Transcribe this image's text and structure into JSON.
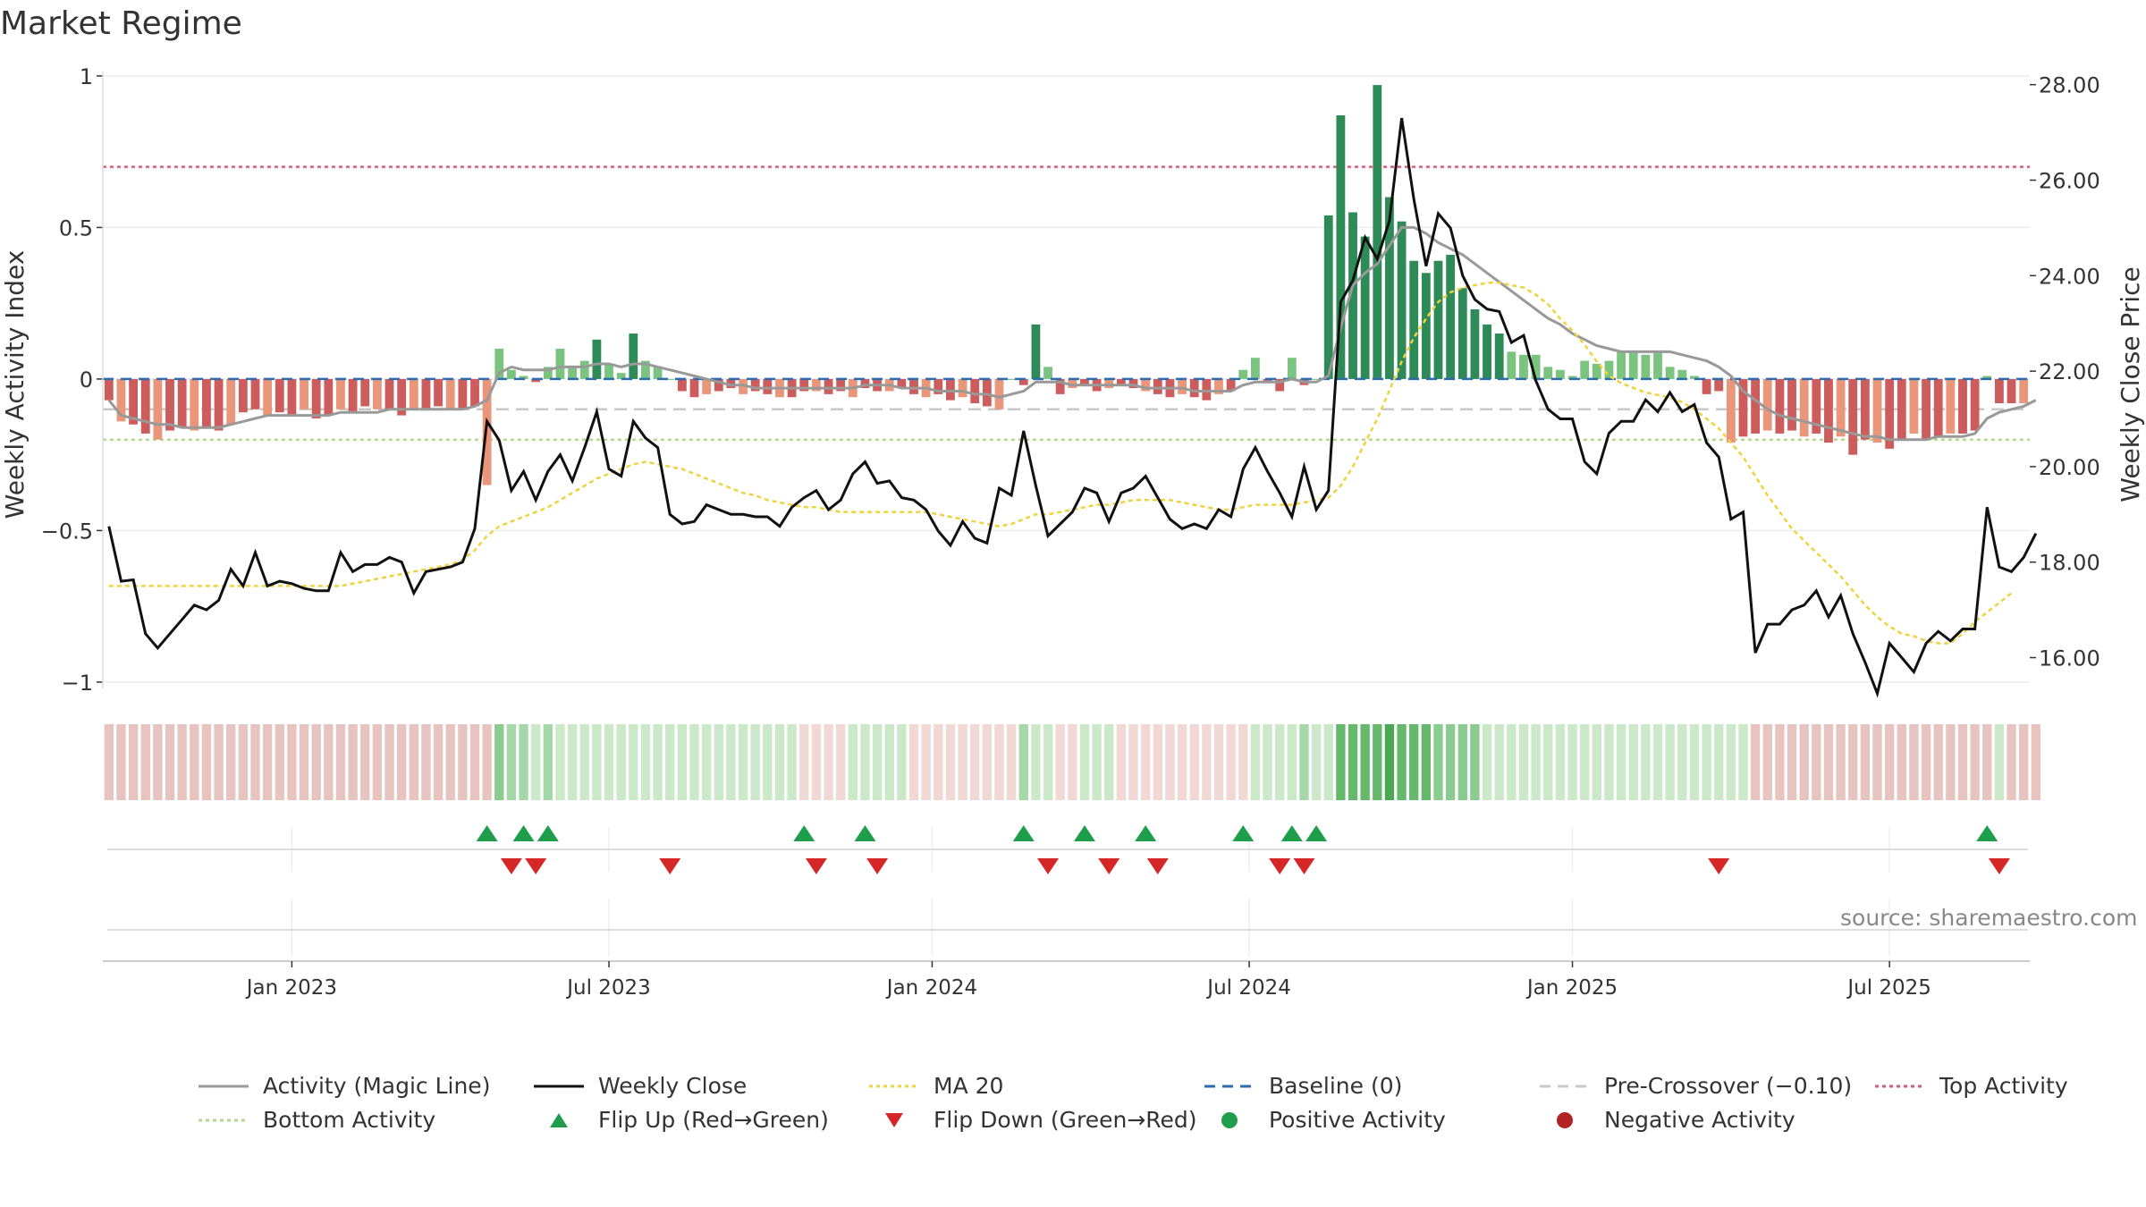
{
  "title": "Market Regime",
  "source": "source: sharemaestro.com",
  "colors": {
    "strong_green": "#2e8b57",
    "light_green": "#7bc47f",
    "strong_red": "#cd5c5c",
    "light_red": "#e9967a",
    "close": "#111111",
    "ma20": "#f0d23c",
    "magic": "#999999",
    "baseline": "#2b6cb0",
    "precross": "#c8c8c8",
    "top": "#e05a7a",
    "bottom": "#b5d98a",
    "flip_up": "#1e9e4a",
    "flip_down": "#d62728"
  },
  "chart_data": {
    "type": "bar",
    "left_axis": {
      "label": "Weekly Activity Index",
      "ticks": [
        1,
        0.5,
        0,
        -0.5,
        -1
      ],
      "tick_labels": [
        "1",
        "0.5",
        "0",
        "−0.5",
        "−1"
      ],
      "range": [
        -1.08,
        1.05
      ]
    },
    "right_axis": {
      "label": "Weekly Close Price",
      "ticks": [
        28,
        26,
        24,
        22,
        20,
        18,
        16
      ],
      "tick_labels": [
        "28.00",
        "26.00",
        "24.00",
        "22.00",
        "20.00",
        "18.00",
        "16.00"
      ],
      "range": [
        14.98,
        28.5
      ]
    },
    "x_axis": {
      "tick_labels": [
        "Jan 2023",
        "Jul 2023",
        "Jan 2024",
        "Jul 2024",
        "Jan 2025",
        "Jul 2025"
      ],
      "tick_weeks": [
        15,
        41,
        67.5,
        93.5,
        120,
        146
      ]
    },
    "levels": {
      "top": 0.7,
      "bottom": -0.2,
      "pre_crossover": -0.1,
      "baseline": 0
    },
    "weeks": 158,
    "activity": [
      -0.07,
      -0.14,
      -0.15,
      -0.18,
      -0.2,
      -0.17,
      -0.16,
      -0.17,
      -0.16,
      -0.17,
      -0.15,
      -0.11,
      -0.1,
      -0.12,
      -0.11,
      -0.12,
      -0.1,
      -0.13,
      -0.12,
      -0.1,
      -0.11,
      -0.09,
      -0.1,
      -0.1,
      -0.12,
      -0.1,
      -0.1,
      -0.09,
      -0.1,
      -0.1,
      -0.09,
      -0.35,
      0.1,
      0.03,
      0.01,
      -0.01,
      0.04,
      0.1,
      0.04,
      0.06,
      0.13,
      0.05,
      0.02,
      0.15,
      0.06,
      0.04,
      0.0,
      -0.04,
      -0.06,
      -0.05,
      -0.04,
      -0.03,
      -0.05,
      -0.04,
      -0.05,
      -0.06,
      -0.06,
      -0.04,
      -0.04,
      -0.05,
      -0.04,
      -0.06,
      -0.03,
      -0.04,
      -0.04,
      -0.03,
      -0.05,
      -0.06,
      -0.05,
      -0.07,
      -0.06,
      -0.08,
      -0.09,
      -0.1,
      0.0,
      -0.02,
      0.18,
      0.04,
      -0.05,
      -0.03,
      -0.02,
      -0.04,
      -0.03,
      -0.02,
      -0.03,
      -0.04,
      -0.05,
      -0.06,
      -0.05,
      -0.06,
      -0.07,
      -0.05,
      -0.04,
      0.03,
      0.07,
      -0.01,
      -0.04,
      0.07,
      -0.02,
      0.0,
      0.54,
      0.87,
      0.55,
      0.47,
      0.97,
      0.6,
      0.52,
      0.39,
      0.35,
      0.39,
      0.41,
      0.3,
      0.23,
      0.18,
      0.15,
      0.09,
      0.08,
      0.08,
      0.04,
      0.03,
      0.01,
      0.06,
      0.05,
      0.06,
      0.09,
      0.09,
      0.08,
      0.09,
      0.04,
      0.03,
      0.01,
      -0.05,
      -0.04,
      -0.21,
      -0.19,
      -0.18,
      -0.17,
      -0.18,
      -0.17,
      -0.19,
      -0.18,
      -0.21,
      -0.19,
      -0.25,
      -0.2,
      -0.21,
      -0.23,
      -0.2,
      -0.18,
      -0.2,
      -0.19,
      -0.18,
      -0.18,
      -0.17,
      0.01,
      -0.08,
      -0.08,
      -0.08
    ],
    "weekly_close": [
      18.75,
      17.6,
      17.63,
      16.5,
      16.2,
      16.5,
      16.8,
      17.1,
      17.0,
      17.2,
      17.85,
      17.5,
      18.2,
      17.5,
      17.6,
      17.55,
      17.45,
      17.4,
      17.4,
      18.2,
      17.8,
      17.95,
      17.95,
      18.1,
      18.0,
      17.35,
      17.8,
      17.85,
      17.9,
      18.0,
      18.7,
      20.95,
      20.55,
      19.5,
      19.9,
      19.3,
      19.9,
      20.25,
      19.7,
      20.4,
      21.15,
      19.95,
      19.8,
      20.95,
      20.6,
      20.4,
      19.0,
      18.8,
      18.85,
      19.2,
      19.1,
      19.0,
      19.0,
      18.95,
      18.95,
      18.75,
      19.15,
      19.35,
      19.5,
      19.1,
      19.3,
      19.85,
      20.1,
      19.65,
      19.7,
      19.35,
      19.3,
      19.1,
      18.65,
      18.35,
      18.85,
      18.5,
      18.4,
      19.55,
      19.4,
      20.75,
      19.6,
      18.55,
      18.8,
      19.05,
      19.55,
      19.45,
      18.85,
      19.45,
      19.55,
      19.8,
      19.35,
      18.9,
      18.7,
      18.8,
      18.7,
      19.1,
      18.95,
      19.95,
      20.4,
      19.9,
      19.45,
      18.95,
      20.0,
      19.1,
      19.5,
      23.45,
      23.9,
      24.8,
      24.35,
      25.15,
      27.3,
      25.6,
      24.2,
      25.3,
      25.0,
      24.0,
      23.5,
      23.3,
      23.25,
      22.6,
      22.75,
      21.8,
      21.2,
      21.0,
      21.0,
      20.1,
      19.85,
      20.7,
      20.95,
      20.95,
      21.4,
      21.15,
      21.55,
      21.15,
      21.3,
      20.5,
      20.2,
      18.9,
      19.05,
      16.1,
      16.7,
      16.7,
      17.0,
      17.1,
      17.4,
      16.85,
      17.3,
      16.5,
      15.9,
      15.25,
      16.3,
      16.0,
      15.7,
      16.3,
      16.55,
      16.35,
      16.6,
      16.6,
      19.15,
      17.9,
      17.8,
      18.1,
      18.6
    ],
    "ma20": [
      17.5,
      17.5,
      17.5,
      17.5,
      17.5,
      17.5,
      17.5,
      17.5,
      17.5,
      17.5,
      17.5,
      17.5,
      17.5,
      17.5,
      17.5,
      17.5,
      17.5,
      17.5,
      17.5,
      17.5,
      17.55,
      17.6,
      17.65,
      17.7,
      17.75,
      17.8,
      17.85,
      17.9,
      17.95,
      18.05,
      18.25,
      18.55,
      18.75,
      18.85,
      18.95,
      19.05,
      19.15,
      19.3,
      19.45,
      19.6,
      19.75,
      19.85,
      19.95,
      20.05,
      20.1,
      20.05,
      20.0,
      19.95,
      19.85,
      19.75,
      19.65,
      19.55,
      19.45,
      19.4,
      19.3,
      19.25,
      19.2,
      19.15,
      19.15,
      19.1,
      19.05,
      19.05,
      19.05,
      19.05,
      19.05,
      19.05,
      19.05,
      19.05,
      19.0,
      18.95,
      18.9,
      18.85,
      18.8,
      18.75,
      18.8,
      18.9,
      19.0,
      19.0,
      19.05,
      19.1,
      19.15,
      19.2,
      19.2,
      19.25,
      19.3,
      19.3,
      19.3,
      19.3,
      19.25,
      19.2,
      19.15,
      19.1,
      19.1,
      19.15,
      19.2,
      19.2,
      19.2,
      19.2,
      19.25,
      19.3,
      19.35,
      19.6,
      20.0,
      20.5,
      21.0,
      21.6,
      22.2,
      22.7,
      23.1,
      23.45,
      23.65,
      23.75,
      23.8,
      23.85,
      23.85,
      23.8,
      23.75,
      23.6,
      23.4,
      23.1,
      22.85,
      22.55,
      22.2,
      21.9,
      21.75,
      21.65,
      21.55,
      21.5,
      21.45,
      21.35,
      21.2,
      21.0,
      20.8,
      20.5,
      20.2,
      19.8,
      19.4,
      19.05,
      18.7,
      18.45,
      18.2,
      17.95,
      17.7,
      17.4,
      17.1,
      16.85,
      16.65,
      16.5,
      16.45,
      16.35,
      16.3,
      16.3,
      16.5,
      16.75,
      16.95,
      17.15,
      17.35
    ],
    "magic": [
      -0.07,
      -0.12,
      -0.13,
      -0.14,
      -0.15,
      -0.15,
      -0.16,
      -0.16,
      -0.16,
      -0.16,
      -0.15,
      -0.14,
      -0.13,
      -0.12,
      -0.12,
      -0.12,
      -0.12,
      -0.12,
      -0.12,
      -0.11,
      -0.11,
      -0.11,
      -0.11,
      -0.1,
      -0.1,
      -0.1,
      -0.1,
      -0.1,
      -0.1,
      -0.1,
      -0.09,
      -0.07,
      0.02,
      0.04,
      0.03,
      0.03,
      0.03,
      0.04,
      0.04,
      0.04,
      0.05,
      0.05,
      0.04,
      0.05,
      0.05,
      0.04,
      0.03,
      0.02,
      0.01,
      0.0,
      -0.01,
      -0.02,
      -0.02,
      -0.03,
      -0.03,
      -0.03,
      -0.03,
      -0.03,
      -0.03,
      -0.03,
      -0.03,
      -0.03,
      -0.02,
      -0.02,
      -0.02,
      -0.03,
      -0.03,
      -0.03,
      -0.04,
      -0.04,
      -0.04,
      -0.05,
      -0.05,
      -0.06,
      -0.05,
      -0.04,
      -0.01,
      -0.01,
      -0.01,
      -0.02,
      -0.02,
      -0.02,
      -0.02,
      -0.02,
      -0.02,
      -0.03,
      -0.03,
      -0.03,
      -0.03,
      -0.04,
      -0.04,
      -0.04,
      -0.04,
      -0.02,
      -0.01,
      -0.01,
      -0.01,
      0.0,
      -0.01,
      -0.01,
      0.01,
      0.17,
      0.31,
      0.35,
      0.38,
      0.44,
      0.5,
      0.5,
      0.48,
      0.45,
      0.43,
      0.41,
      0.38,
      0.35,
      0.32,
      0.29,
      0.26,
      0.23,
      0.2,
      0.18,
      0.15,
      0.13,
      0.11,
      0.1,
      0.09,
      0.09,
      0.09,
      0.09,
      0.09,
      0.08,
      0.07,
      0.06,
      0.04,
      0.01,
      -0.04,
      -0.07,
      -0.1,
      -0.12,
      -0.13,
      -0.14,
      -0.15,
      -0.16,
      -0.17,
      -0.18,
      -0.19,
      -0.19,
      -0.2,
      -0.2,
      -0.2,
      -0.2,
      -0.19,
      -0.19,
      -0.19,
      -0.18,
      -0.13,
      -0.11,
      -0.1,
      -0.09,
      -0.07
    ],
    "regime_strip": [
      1,
      1,
      1,
      1,
      1,
      1,
      1,
      1,
      1,
      1,
      1,
      1,
      1,
      1,
      1,
      1,
      1,
      1,
      1,
      1,
      1,
      1,
      1,
      1,
      1,
      1,
      1,
      1,
      1,
      1,
      1,
      1,
      5,
      3,
      3,
      4,
      3,
      4,
      4,
      4,
      4,
      4,
      4,
      4,
      4,
      4,
      4,
      4,
      4,
      4,
      4,
      4,
      4,
      4,
      4,
      4,
      4,
      2,
      2,
      2,
      2,
      4,
      4,
      4,
      4,
      4,
      2,
      2,
      2,
      2,
      2,
      2,
      2,
      2,
      2,
      3,
      4,
      4,
      2,
      2,
      4,
      4,
      4,
      2,
      2,
      2,
      2,
      2,
      2,
      2,
      2,
      2,
      2,
      2,
      4,
      4,
      4,
      4,
      3,
      4,
      4,
      6,
      6,
      6,
      6,
      7,
      6,
      6,
      6,
      5,
      5,
      5,
      5,
      4,
      4,
      4,
      4,
      4,
      4,
      4,
      4,
      4,
      4,
      4,
      4,
      4,
      4,
      4,
      4,
      4,
      4,
      4,
      4,
      4,
      4,
      1,
      1,
      1,
      1,
      1,
      1,
      1,
      1,
      1,
      1,
      1,
      1,
      1,
      1,
      1,
      1,
      1,
      1,
      1,
      1,
      4,
      1,
      1,
      1
    ],
    "flip_up_weeks": [
      31,
      34,
      36,
      57,
      62,
      75,
      80,
      85,
      93,
      97,
      99,
      154
    ],
    "flip_down_weeks": [
      33,
      35,
      46,
      58,
      63,
      77,
      82,
      86,
      96,
      98,
      132,
      155
    ]
  },
  "legend": [
    {
      "label": "Activity (Magic Line)",
      "kind": "line",
      "color": "#999999",
      "dash": ""
    },
    {
      "label": "Weekly Close",
      "kind": "line",
      "color": "#111111",
      "dash": ""
    },
    {
      "label": "MA 20",
      "kind": "line",
      "color": "#f0d23c",
      "dash": "4,4"
    },
    {
      "label": "Baseline (0)",
      "kind": "line",
      "color": "#2b6cb0",
      "dash": "12,8"
    },
    {
      "label": "Pre-Crossover (−0.10)",
      "kind": "line",
      "color": "#c8c8c8",
      "dash": "12,8"
    },
    {
      "label": "Top Activity",
      "kind": "line",
      "color": "#e05a7a",
      "dash": "4,4"
    },
    {
      "label": "Bottom Activity",
      "kind": "line",
      "color": "#b5d98a",
      "dash": "4,4"
    },
    {
      "label": "Flip Up (Red→Green)",
      "kind": "tri-up",
      "color": "#1e9e4a",
      "dash": ""
    },
    {
      "label": "Flip Down (Green→Red)",
      "kind": "tri-down",
      "color": "#d62728",
      "dash": ""
    },
    {
      "label": "Positive Activity",
      "kind": "dot",
      "color": "#1e9e4a",
      "dash": ""
    },
    {
      "label": "Negative Activity",
      "kind": "dot",
      "color": "#b22222",
      "dash": ""
    }
  ]
}
